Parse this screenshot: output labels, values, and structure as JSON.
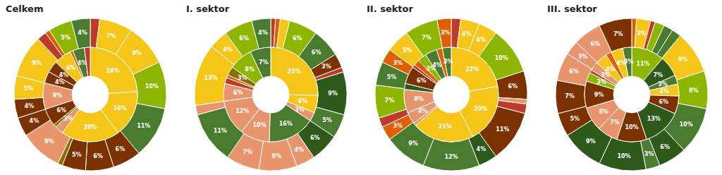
{
  "chart_data": [
    {
      "type": "pie",
      "title": "Celkem",
      "data_labels": true,
      "series": [
        {
          "values": [
            2,
            7,
            9,
            10,
            11,
            6,
            6,
            5,
            1,
            9,
            4,
            4,
            5,
            9,
            2,
            1,
            5,
            4
          ],
          "value_labels": [
            null,
            "7%",
            "9%",
            "10%",
            "11%",
            "6%",
            "6%",
            "5%",
            null,
            "9%",
            "4%",
            "4%",
            "5%",
            "9%",
            null,
            null,
            "5%",
            "4%"
          ],
          "colors": [
            "#c0392b",
            "#f5c518",
            "#f5c518",
            "#8db600",
            "#4a7c2f",
            "#7b3200",
            "#7b3200",
            "#7b3200",
            "#8b7000",
            "#e8956d",
            "#7b3200",
            "#7b3200",
            "#f5c518",
            "#f5c518",
            "#c0392b",
            "#e06000",
            "#8db600",
            "#4a7c2f"
          ]
        },
        {
          "values": [
            24,
            16,
            20,
            3,
            1,
            6,
            9,
            4,
            4,
            6,
            1,
            4,
            2
          ],
          "value_labels": [
            "24%",
            "16%",
            "20%",
            "3%",
            null,
            "6%",
            "9%",
            "4%",
            "4%",
            "6%",
            null,
            "4%",
            null
          ],
          "colors": [
            "#f5c518",
            "#f5c518",
            "#f5c518",
            "#e8956d",
            "#8b7000",
            "#7b3200",
            "#e8956d",
            "#7b3200",
            "#7b3200",
            "#f5c518",
            "#e06000",
            "#4a7c2f",
            "#c0392b"
          ]
        }
      ]
    },
    {
      "type": "pie",
      "title": "I. sektor",
      "data_labels": true,
      "series": [
        {
          "values": [
            1,
            1,
            2,
            6,
            6,
            3,
            1,
            9,
            5,
            6,
            4,
            8,
            7,
            11,
            2,
            13,
            4,
            6,
            4
          ],
          "value_labels": [
            null,
            null,
            null,
            "6%",
            "6%",
            "3%",
            null,
            "9%",
            "5%",
            "6%",
            "4%",
            "8%",
            "7%",
            "11%",
            null,
            "13%",
            "4%",
            "6%",
            "4%"
          ],
          "colors": [
            "#c0392b",
            "#e06000",
            "#f5c518",
            "#8db600",
            "#4a7c2f",
            "#7b3200",
            "#c0392b",
            "#2d5a1b",
            "#4a7c2f",
            "#2d5a1b",
            "#e8956d",
            "#e8956d",
            "#e8956d",
            "#4a7c2f",
            "#e8956d",
            "#f5c518",
            "#f5c518",
            "#8db600",
            "#4a7c2f"
          ]
        },
        {
          "values": [
            25,
            6,
            3,
            16,
            10,
            12,
            6,
            2,
            1,
            3,
            8,
            7
          ],
          "value_labels": [
            "25%",
            "6%",
            "3%",
            "16%",
            "10%",
            "12%",
            "6%",
            null,
            null,
            "3%",
            "8%",
            "7%"
          ],
          "colors": [
            "#f5c518",
            "#f5c518",
            "#e8956d",
            "#4a7c2f",
            "#e8956d",
            "#e8956d",
            "#e8956d",
            "#c0392b",
            "#e06000",
            "#8b7000",
            "#8db600",
            "#4a7c2f"
          ]
        }
      ]
    },
    {
      "type": "pie",
      "title": "II. sektor",
      "data_labels": true,
      "series": [
        {
          "values": [
            2,
            4,
            4,
            10,
            6,
            1,
            2,
            11,
            4,
            12,
            9,
            3,
            2,
            7,
            5,
            3,
            5,
            7,
            3
          ],
          "value_labels": [
            null,
            "4%",
            "4%",
            "10%",
            "6%",
            null,
            null,
            "11%",
            "4%",
            "12%",
            "9%",
            "3%",
            null,
            "7%",
            "5%",
            "3%",
            "5%",
            "7%",
            "3%"
          ],
          "colors": [
            "#c0392b",
            "#f5c518",
            "#f5c518",
            "#8db600",
            "#7b3200",
            "#e8956d",
            "#c0392b",
            "#7b3200",
            "#2d5a1b",
            "#4a7c2f",
            "#4a7c2f",
            "#e06000",
            "#c0392b",
            "#8db600",
            "#4a7c2f",
            "#e06000",
            "#f5c518",
            "#8db600",
            "#e06000"
          ]
        },
        {
          "values": [
            22,
            20,
            21,
            1,
            4,
            8,
            2,
            6,
            0,
            1,
            2,
            3,
            4,
            2,
            3
          ],
          "value_labels": [
            "22%",
            "20%",
            "21%",
            null,
            "4%",
            "8%",
            null,
            "6%",
            null,
            null,
            null,
            "3%",
            "4%",
            null,
            "3%"
          ],
          "colors": [
            "#f5c518",
            "#f5c518",
            "#f5c518",
            "#e8956d",
            "#e8956d",
            "#e8956d",
            "#2d5a1b",
            "#7b3200",
            "#e8956d",
            "#c0392b",
            "#e06000",
            "#8db600",
            "#4a7c2f",
            "#e06000",
            "#4a7c2f"
          ]
        }
      ]
    },
    {
      "type": "pie",
      "title": "III. sektor",
      "data_labels": true,
      "series": [
        {
          "values": [
            1,
            3,
            1,
            2,
            2,
            2,
            9,
            8,
            10,
            6,
            3,
            10,
            9,
            5,
            7,
            6,
            3,
            6,
            7
          ],
          "value_labels": [
            null,
            "3%",
            null,
            null,
            null,
            null,
            "9%",
            "8%",
            "10%",
            "6%",
            "3%",
            "10%",
            "9%",
            "5%",
            "7%",
            "6%",
            "3%",
            "6%",
            "7%"
          ],
          "colors": [
            "#e06000",
            "#f5c518",
            "#c0392b",
            "#8db600",
            "#4a7c2f",
            "#4a7c2f",
            "#f5c518",
            "#8db600",
            "#4a7c2f",
            "#2d5a1b",
            "#4a7c2f",
            "#2d5a1b",
            "#2d5a1b",
            "#7b3200",
            "#7b3200",
            "#e8956d",
            "#e8956d",
            "#e8956d",
            "#7b3200"
          ]
        },
        {
          "values": [
            11,
            7,
            3,
            4,
            6,
            13,
            10,
            7,
            8,
            9,
            3,
            1,
            3,
            4,
            2,
            4,
            3
          ],
          "value_labels": [
            "11%",
            "7%",
            "3%",
            "4%",
            "6%",
            "13%",
            "10%",
            "7%",
            "8%",
            "9%",
            "3%",
            null,
            "3%",
            "4%",
            null,
            "4%",
            "3%"
          ],
          "colors": [
            "#8db600",
            "#2d5a1b",
            "#4a7c2f",
            "#f5c518",
            "#7b3200",
            "#2d5a1b",
            "#7b3200",
            "#e8956d",
            "#e8956d",
            "#7b3200",
            "#8db600",
            "#c0392b",
            "#e8956d",
            "#f5c518",
            "#e06000",
            "#f5c518",
            "#4a7c2f"
          ]
        }
      ]
    }
  ]
}
